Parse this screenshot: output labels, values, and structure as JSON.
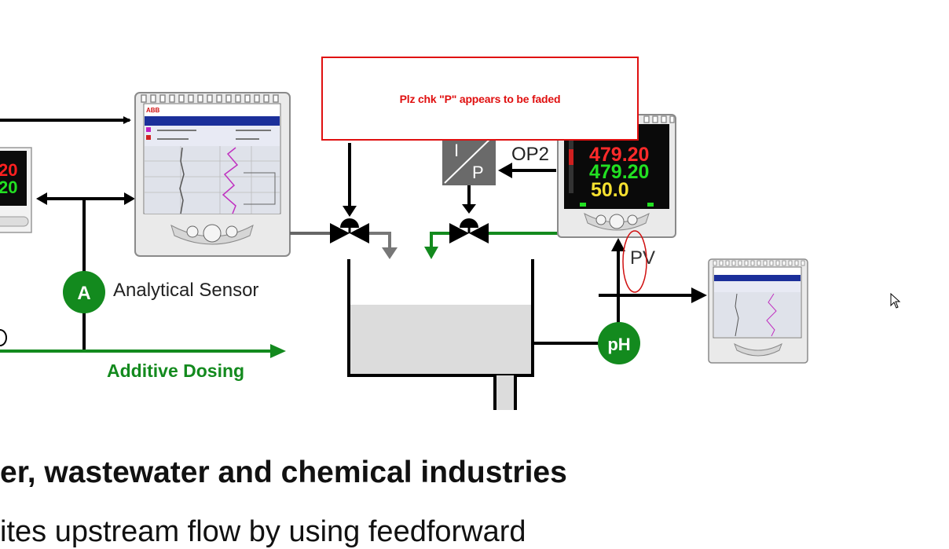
{
  "comment": {
    "text": "Plz chk \"P\" appears to be faded"
  },
  "labels": {
    "analytical_sensor": "Analytical Sensor",
    "additive_dosing": "Additive Dosing",
    "op2": "OP2",
    "pv": "PV",
    "ip_top": "I",
    "ip_bottom": "P",
    "sensor_a": "A",
    "sensor_ph": "pH"
  },
  "left_controller": {
    "value1": "20",
    "value2": "20"
  },
  "main_controller": {
    "value1": "479.20",
    "value2": "479.20",
    "value3": "50.0"
  },
  "recorder_brand": "ABB",
  "heading": "er, wastewater and chemical industries",
  "body_line": "ites upstream flow by using feedforward",
  "colors": {
    "process_green": "#138a1e",
    "comment_red": "#e01010",
    "line_black": "#000000"
  }
}
